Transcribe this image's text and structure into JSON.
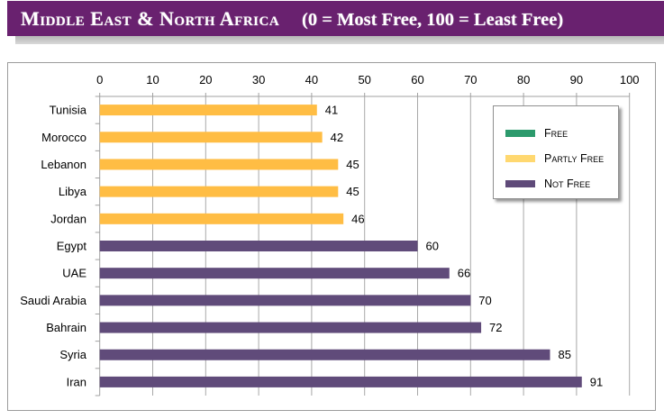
{
  "chart_data": {
    "type": "bar",
    "orientation": "horizontal",
    "title": "Middle East & North Africa",
    "subtitle": "(0 = Most Free, 100 = Least Free)",
    "xlabel": "",
    "ylabel": "",
    "xlim": [
      0,
      100
    ],
    "xticks": [
      0,
      10,
      20,
      30,
      40,
      50,
      60,
      70,
      80,
      90,
      100
    ],
    "x_axis_position": "top",
    "grid": true,
    "legend": "top-right",
    "data_labels": true,
    "categories": [
      "Tunisia",
      "Morocco",
      "Lebanon",
      "Libya",
      "Jordan",
      "Egypt",
      "UAE",
      "Saudi Arabia",
      "Bahrain",
      "Syria",
      "Iran"
    ],
    "series": [
      {
        "name": "Free",
        "color": "#2C9A6C",
        "legend_color": "#2C9A6C",
        "values": [
          null,
          null,
          null,
          null,
          null,
          null,
          null,
          null,
          null,
          null,
          null
        ]
      },
      {
        "name": "Partly Free",
        "color": "#FFBD44",
        "legend_color": "#FFD870",
        "values": [
          41,
          42,
          45,
          45,
          46,
          null,
          null,
          null,
          null,
          null,
          null
        ]
      },
      {
        "name": "Not Free",
        "color": "#604B7A",
        "legend_color": "#5F4A79",
        "values": [
          null,
          null,
          null,
          null,
          null,
          60,
          66,
          70,
          72,
          85,
          91
        ]
      }
    ]
  },
  "colors": {
    "banner": "#69216F",
    "grid": "#A8A8A8",
    "axis": "#A0A0A0"
  }
}
